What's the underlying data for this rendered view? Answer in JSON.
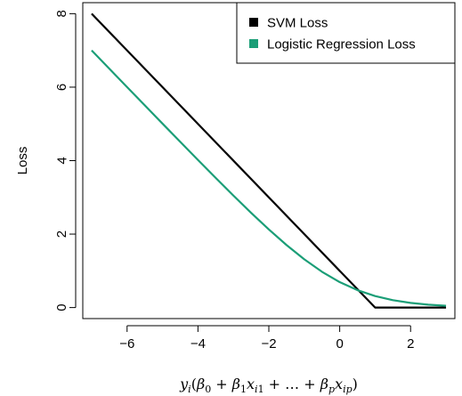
{
  "chart_data": {
    "type": "line",
    "title": "",
    "xlabel": "y_i(β_0 + β_1 x_i1 + … + β_p x_ip)",
    "ylabel": "Loss",
    "xlim": [
      -7.25,
      3.25
    ],
    "ylim": [
      -0.3,
      8.3
    ],
    "xticks": [
      -6,
      -4,
      -2,
      0,
      2
    ],
    "xtick_labels": [
      "−6",
      "−4",
      "−2",
      "0",
      "2"
    ],
    "yticks": [
      0,
      2,
      4,
      6,
      8
    ],
    "ytick_labels": [
      "0",
      "2",
      "4",
      "6",
      "8"
    ],
    "grid": false,
    "legend_position": "top-right",
    "series": [
      {
        "name": "SVM Loss",
        "color": "#000000",
        "x": [
          -7,
          1,
          3
        ],
        "y": [
          8,
          0,
          0
        ]
      },
      {
        "name": "Logistic Regression Loss",
        "color": "#1b9e77",
        "x": [
          -7,
          -6.5,
          -6,
          -5.5,
          -5,
          -4.5,
          -4,
          -3.5,
          -3,
          -2.5,
          -2,
          -1.5,
          -1,
          -0.5,
          0,
          0.5,
          1,
          1.5,
          2,
          2.5,
          3
        ],
        "y": [
          7.0009,
          6.5015,
          6.0025,
          5.5041,
          5.0067,
          4.5111,
          4.0181,
          3.5298,
          3.0486,
          2.5789,
          2.1269,
          1.7014,
          1.3133,
          0.9741,
          0.6931,
          0.4741,
          0.3133,
          0.2014,
          0.1269,
          0.0789,
          0.0486
        ]
      }
    ]
  }
}
